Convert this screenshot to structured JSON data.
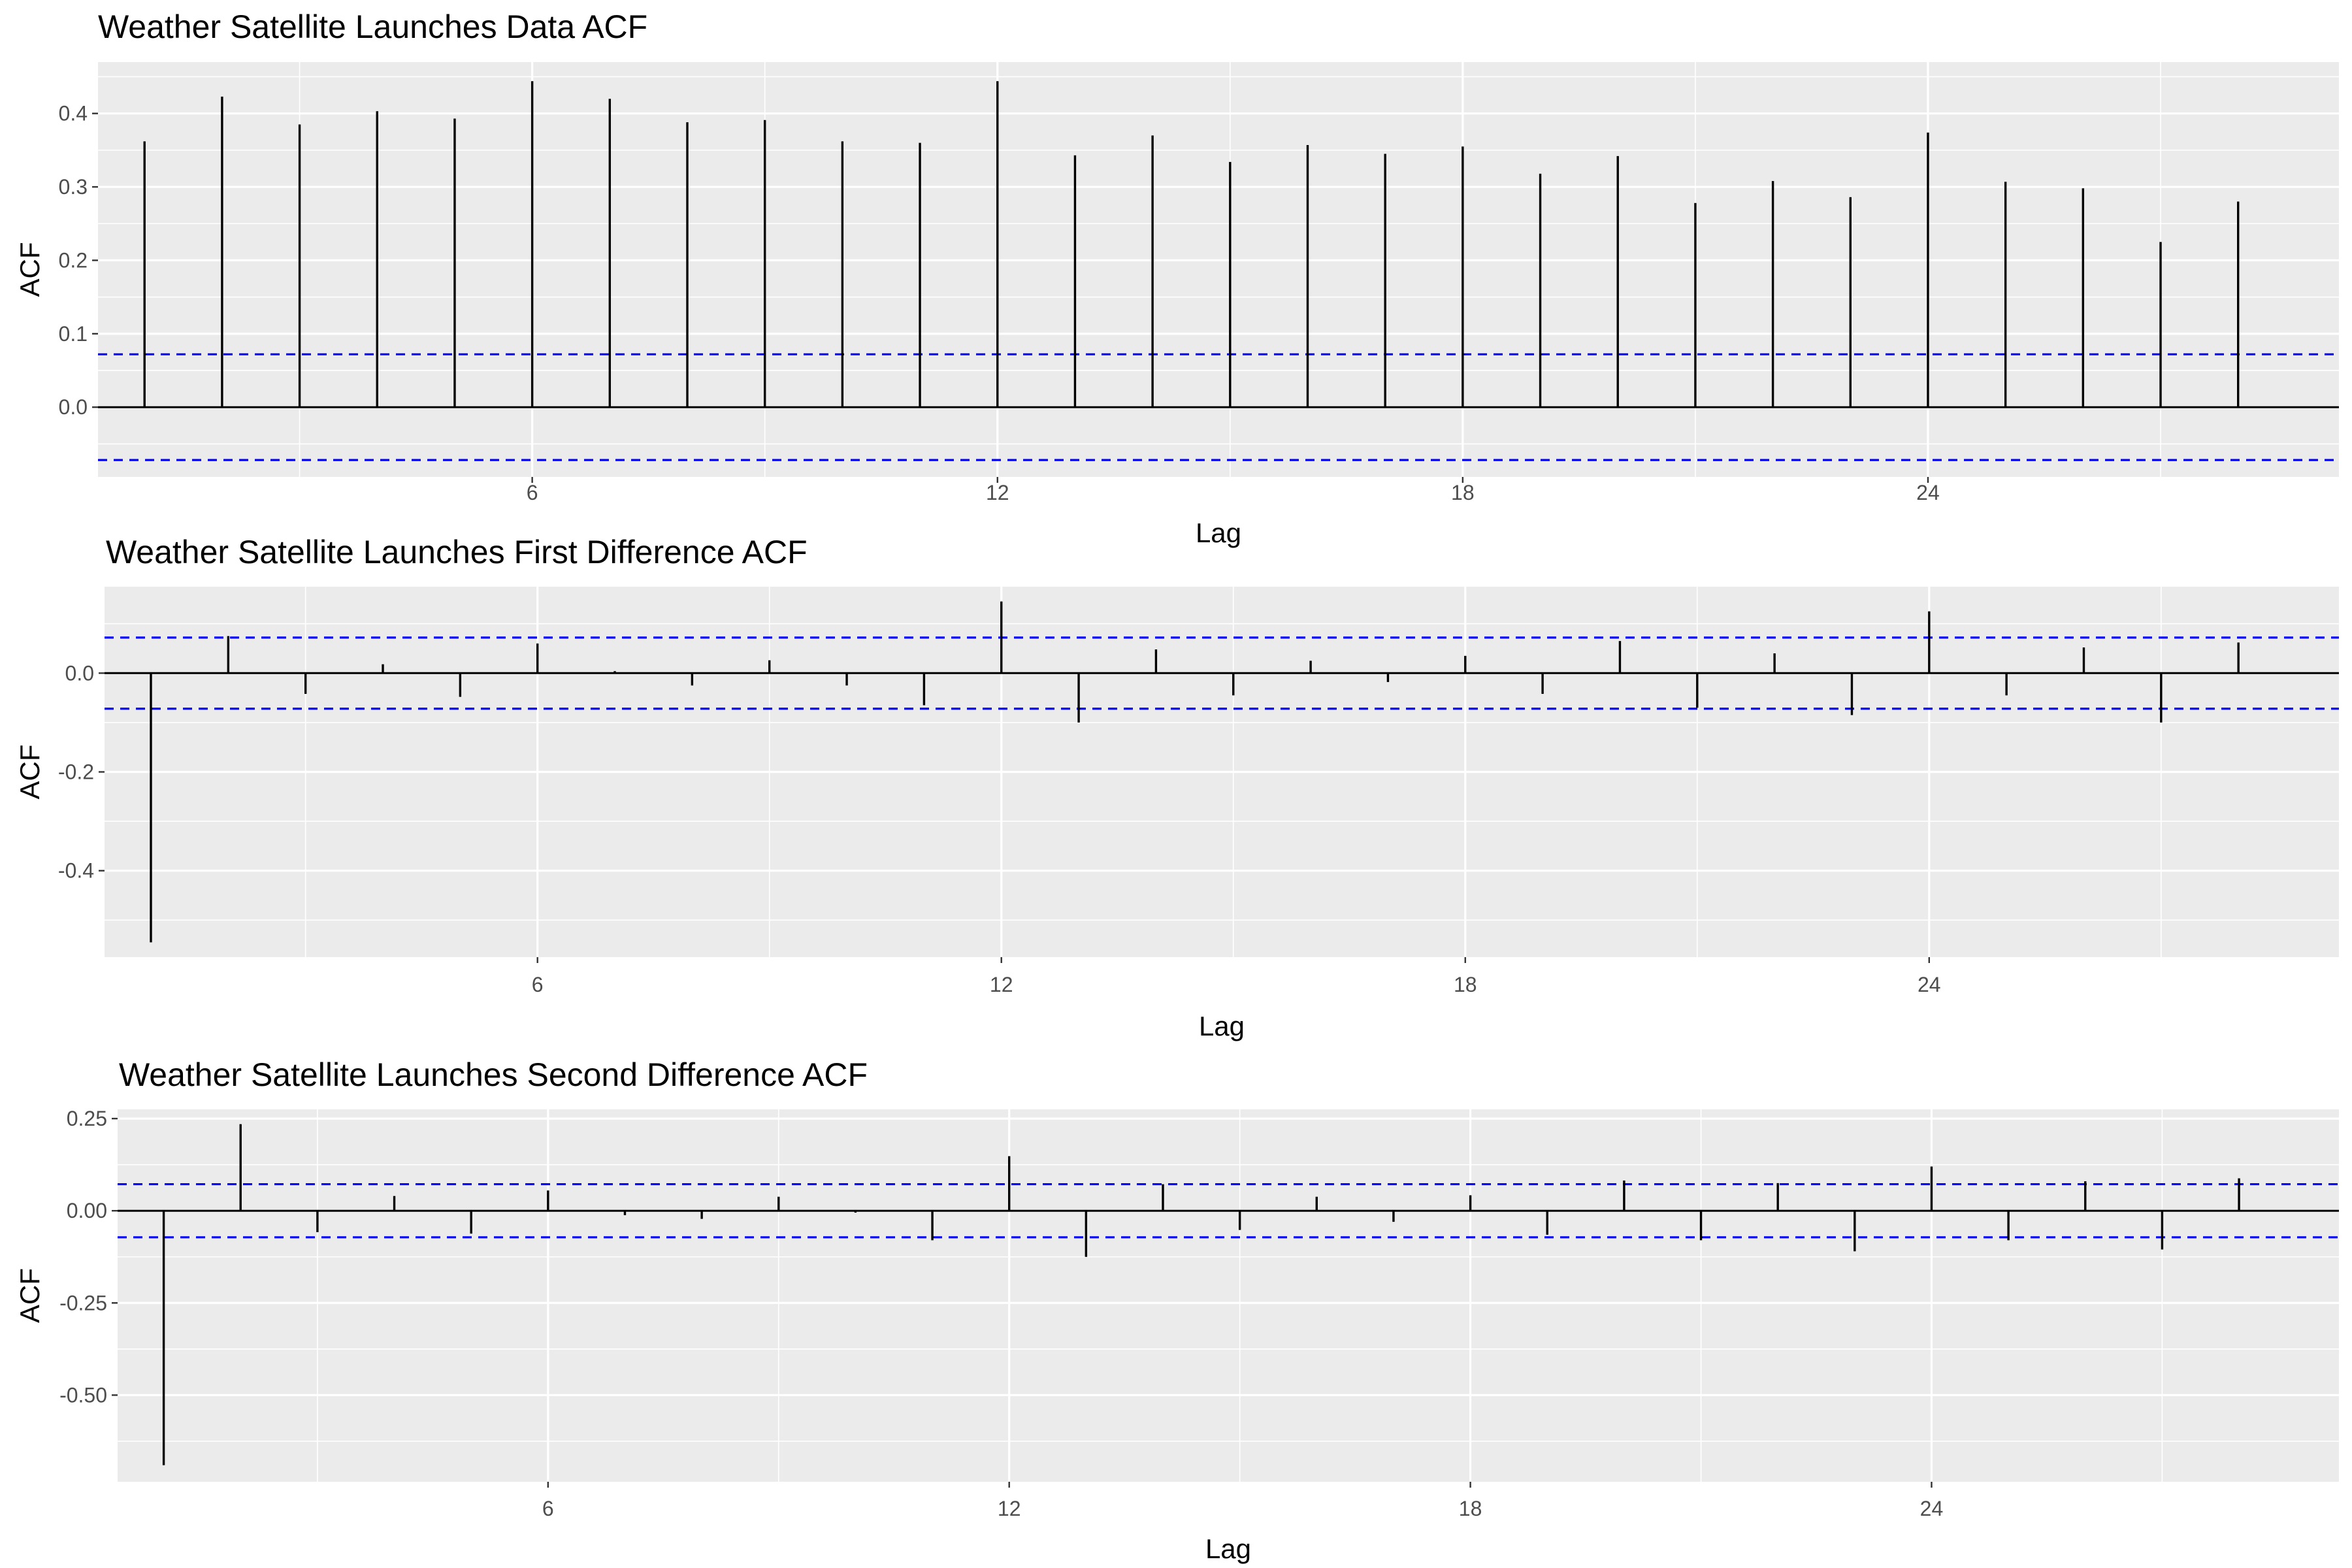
{
  "chart_data": [
    {
      "type": "bar",
      "title": "Weather Satellite Launches Data ACF",
      "xlabel": "Lag",
      "ylabel": "ACF",
      "xlim": [
        0.4,
        29.3
      ],
      "ylim": [
        -0.095,
        0.47
      ],
      "x_ticks": [
        6,
        12,
        18,
        24
      ],
      "y_ticks": [
        0.0,
        0.1,
        0.2,
        0.3,
        0.4
      ],
      "y_tick_labels": [
        "0.0",
        "0.1",
        "0.2",
        "0.3",
        "0.4"
      ],
      "confidence_bounds": [
        0.072,
        -0.072
      ],
      "grid": true,
      "lags": [
        1,
        2,
        3,
        4,
        5,
        6,
        7,
        8,
        9,
        10,
        11,
        12,
        13,
        14,
        15,
        16,
        17,
        18,
        19,
        20,
        21,
        22,
        23,
        24,
        25,
        26,
        27,
        28
      ],
      "values": [
        0.362,
        0.423,
        0.385,
        0.403,
        0.393,
        0.444,
        0.42,
        0.388,
        0.391,
        0.362,
        0.36,
        0.444,
        0.343,
        0.37,
        0.334,
        0.357,
        0.345,
        0.355,
        0.318,
        0.342,
        0.278,
        0.308,
        0.286,
        0.374,
        0.307,
        0.298,
        0.225,
        0.28
      ]
    },
    {
      "type": "bar",
      "title": "Weather Satellite Launches First Difference ACF",
      "xlabel": "Lag",
      "ylabel": "ACF",
      "xlim": [
        0.4,
        29.3
      ],
      "ylim": [
        -0.575,
        0.175
      ],
      "x_ticks": [
        6,
        12,
        18,
        24
      ],
      "y_ticks": [
        0.0,
        -0.2,
        -0.4
      ],
      "y_tick_labels": [
        "0.0",
        "-0.2",
        "-0.4"
      ],
      "confidence_bounds": [
        0.072,
        -0.072
      ],
      "grid": true,
      "lags": [
        1,
        2,
        3,
        4,
        5,
        6,
        7,
        8,
        9,
        10,
        11,
        12,
        13,
        14,
        15,
        16,
        17,
        18,
        19,
        20,
        21,
        22,
        23,
        24,
        25,
        26,
        27,
        28
      ],
      "values": [
        -0.545,
        0.075,
        -0.042,
        0.018,
        -0.048,
        0.06,
        0.004,
        -0.025,
        0.026,
        -0.025,
        -0.065,
        0.145,
        -0.1,
        0.048,
        -0.045,
        0.025,
        -0.018,
        0.035,
        -0.042,
        0.065,
        -0.07,
        0.04,
        -0.085,
        0.125,
        -0.045,
        0.052,
        -0.1,
        0.062
      ]
    },
    {
      "type": "bar",
      "title": "Weather Satellite Launches Second Difference ACF",
      "xlabel": "Lag",
      "ylabel": "ACF",
      "xlim": [
        0.4,
        29.3
      ],
      "ylim": [
        -0.735,
        0.275
      ],
      "x_ticks": [
        6,
        12,
        18,
        24
      ],
      "y_ticks": [
        0.25,
        0.0,
        -0.25,
        -0.5
      ],
      "y_tick_labels": [
        "0.25",
        "0.00",
        "-0.25",
        "-0.50"
      ],
      "confidence_bounds": [
        0.072,
        -0.072
      ],
      "grid": true,
      "lags": [
        1,
        2,
        3,
        4,
        5,
        6,
        7,
        8,
        9,
        10,
        11,
        12,
        13,
        14,
        15,
        16,
        17,
        18,
        19,
        20,
        21,
        22,
        23,
        24,
        25,
        26,
        27,
        28
      ],
      "values": [
        -0.69,
        0.235,
        -0.058,
        0.04,
        -0.062,
        0.055,
        -0.012,
        -0.022,
        0.038,
        -0.005,
        -0.08,
        0.148,
        -0.125,
        0.072,
        -0.052,
        0.038,
        -0.03,
        0.042,
        -0.065,
        0.082,
        -0.08,
        0.075,
        -0.11,
        0.12,
        -0.08,
        0.08,
        -0.105,
        0.088
      ]
    }
  ]
}
